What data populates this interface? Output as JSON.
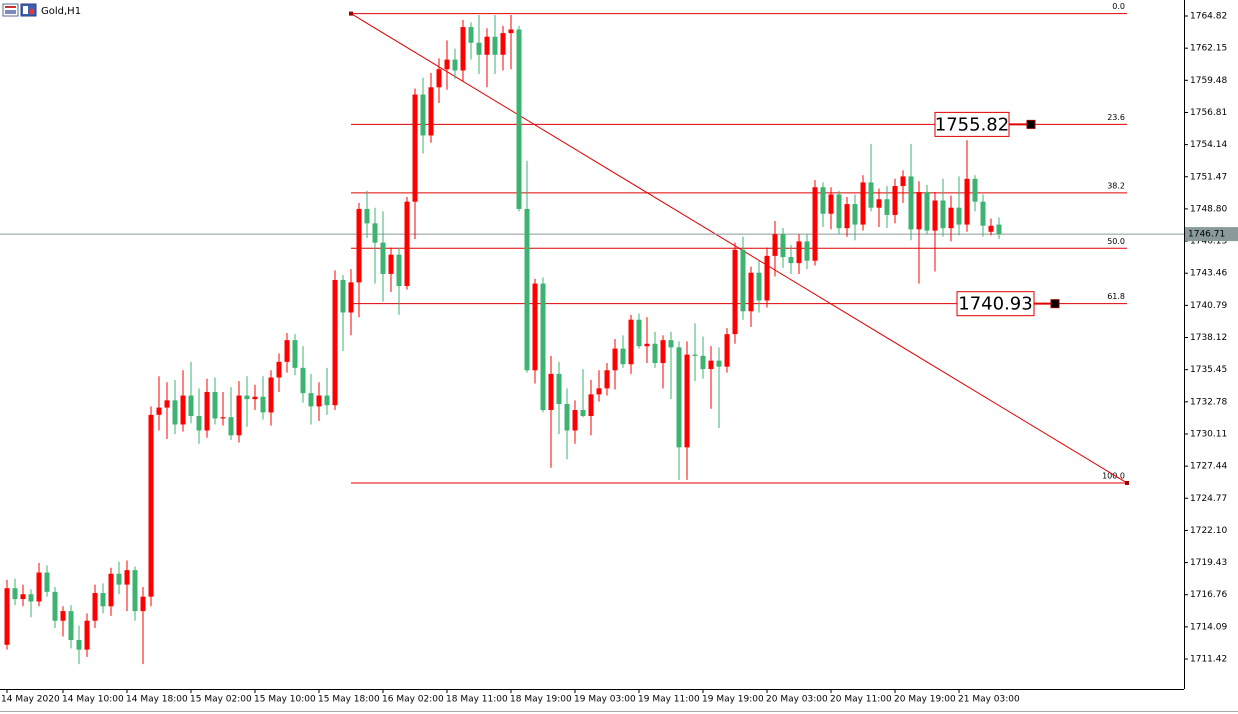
{
  "chart_data": {
    "type": "candlestick",
    "title": "Gold,H1",
    "up_color": "#ff0000",
    "down_color": "#3cb371",
    "line_color": "#e00000",
    "ylim": [
      1708.93,
      1766.15
    ],
    "yticks": [
      1764.82,
      1762.15,
      1759.48,
      1756.81,
      1754.14,
      1751.47,
      {
        "value": 1748.8,
        "label": "1748.80"
      },
      1746.13,
      1743.46,
      1740.79,
      1738.12,
      1735.45,
      1732.78,
      1730.11,
      1727.44,
      1724.77,
      {
        "value": 1722.1,
        "label": "1722.10"
      },
      1719.43,
      1716.76,
      1714.09,
      1711.42
    ],
    "current_price": 1746.71,
    "fib_high": 1765.02,
    "fib_low": 1726.04,
    "fib_levels": [
      {
        "value": 0,
        "label": "0.0"
      },
      23.6,
      38.2,
      {
        "value": 50,
        "label": "50.0"
      },
      61.8,
      {
        "value": 100,
        "label": "100.0"
      }
    ],
    "price_labels": [
      1755.82,
      1740.93
    ],
    "categories": [
      "14 May 2020",
      null,
      null,
      null,
      null,
      null,
      null,
      "14 May 10:00",
      null,
      null,
      null,
      null,
      null,
      null,
      null,
      "14 May 18:00",
      null,
      null,
      null,
      null,
      null,
      null,
      null,
      "15 May 02:00",
      null,
      null,
      null,
      null,
      null,
      null,
      null,
      "15 May 10:00",
      null,
      null,
      null,
      null,
      null,
      null,
      null,
      "15 May 18:00",
      null,
      null,
      null,
      null,
      null,
      null,
      null,
      "16 May 02:00",
      null,
      null,
      null,
      null,
      null,
      null,
      null,
      "18 May 11:00",
      null,
      null,
      null,
      null,
      null,
      null,
      null,
      "18 May 19:00",
      null,
      null,
      null,
      null,
      null,
      null,
      null,
      "19 May 03:00",
      null,
      null,
      null,
      null,
      null,
      null,
      null,
      "19 May 11:00",
      null,
      null,
      null,
      null,
      null,
      null,
      null,
      "19 May 19:00",
      null,
      null,
      null,
      null,
      null,
      null,
      null,
      "20 May 03:00",
      null,
      null,
      null,
      null,
      null,
      null,
      null,
      "20 May 11:00",
      null,
      null,
      null,
      null,
      null,
      null,
      null,
      "20 May 19:00",
      null,
      null,
      null,
      null,
      null,
      null,
      null,
      "21 May 03:00",
      null,
      null,
      null,
      null,
      null
    ],
    "ohlc": [
      [
        1712.6,
        1718.0,
        1712.2,
        1717.3
      ],
      [
        1717.3,
        1718.1,
        1715.9,
        1716.4
      ],
      [
        1716.4,
        1717.6,
        1715.8,
        1716.8
      ],
      [
        1716.8,
        1717.2,
        1714.9,
        1716.2
      ],
      [
        1716.2,
        1719.4,
        1715.8,
        1718.6
      ],
      [
        1718.6,
        1719.2,
        1716.6,
        1717.0
      ],
      [
        1717.0,
        1717.4,
        1714.0,
        1714.6
      ],
      [
        1714.6,
        1715.8,
        1713.3,
        1715.4
      ],
      [
        1715.4,
        1715.9,
        1712.3,
        1713.0
      ],
      [
        1713.0,
        1714.2,
        1711.0,
        1712.2
      ],
      [
        1712.2,
        1715.2,
        1711.6,
        1714.6
      ],
      [
        1714.6,
        1717.6,
        1714.0,
        1716.9
      ],
      [
        1716.9,
        1717.7,
        1715.2,
        1715.8
      ],
      [
        1715.8,
        1719.0,
        1715.0,
        1718.5
      ],
      [
        1718.5,
        1719.5,
        1716.8,
        1717.6
      ],
      [
        1717.6,
        1719.6,
        1715.4,
        1718.8
      ],
      [
        1718.8,
        1719.1,
        1714.6,
        1715.4
      ],
      [
        1715.4,
        1717.4,
        1711.0,
        1716.6
      ],
      [
        1716.6,
        1732.4,
        1715.8,
        1731.7
      ],
      [
        1731.7,
        1734.9,
        1730.4,
        1732.3
      ],
      [
        1732.3,
        1734.4,
        1729.7,
        1732.9
      ],
      [
        1732.9,
        1734.6,
        1730.1,
        1730.9
      ],
      [
        1730.9,
        1735.4,
        1730.3,
        1733.3
      ],
      [
        1733.3,
        1736.1,
        1731.0,
        1731.6
      ],
      [
        1731.6,
        1733.9,
        1729.3,
        1730.4
      ],
      [
        1730.4,
        1734.7,
        1729.8,
        1733.6
      ],
      [
        1733.6,
        1734.8,
        1730.9,
        1731.4
      ],
      [
        1731.4,
        1733.6,
        1730.8,
        1731.5
      ],
      [
        1731.5,
        1734.0,
        1729.6,
        1730.0
      ],
      [
        1730.0,
        1734.5,
        1729.4,
        1733.3
      ],
      [
        1733.3,
        1734.9,
        1730.7,
        1733.0
      ],
      [
        1733.0,
        1734.2,
        1732.1,
        1733.2
      ],
      [
        1733.2,
        1734.9,
        1731.3,
        1731.9
      ],
      [
        1731.9,
        1735.4,
        1730.8,
        1734.8
      ],
      [
        1734.8,
        1736.8,
        1733.6,
        1736.1
      ],
      [
        1736.1,
        1738.5,
        1735.2,
        1737.9
      ],
      [
        1737.9,
        1738.4,
        1735.0,
        1735.6
      ],
      [
        1735.6,
        1737.4,
        1732.7,
        1733.5
      ],
      [
        1733.5,
        1735.1,
        1730.9,
        1732.4
      ],
      [
        1732.4,
        1734.4,
        1731.2,
        1733.3
      ],
      [
        1733.3,
        1735.6,
        1731.7,
        1732.5
      ],
      [
        1732.5,
        1743.7,
        1732.1,
        1742.9
      ],
      [
        1742.9,
        1743.3,
        1737.0,
        1740.2
      ],
      [
        1740.2,
        1743.8,
        1738.3,
        1742.7
      ],
      [
        1742.7,
        1749.3,
        1739.8,
        1748.8
      ],
      [
        1748.8,
        1750.3,
        1746.4,
        1747.6
      ],
      [
        1747.6,
        1748.9,
        1742.6,
        1746.0
      ],
      [
        1746.0,
        1748.6,
        1741.1,
        1743.4
      ],
      [
        1743.4,
        1745.6,
        1741.9,
        1745.0
      ],
      [
        1745.0,
        1745.6,
        1740.0,
        1742.4
      ],
      [
        1742.4,
        1749.8,
        1742.1,
        1749.4
      ],
      [
        1749.4,
        1758.8,
        1746.3,
        1758.3
      ],
      [
        1758.3,
        1759.7,
        1753.4,
        1754.9
      ],
      [
        1754.9,
        1760.1,
        1754.3,
        1758.9
      ],
      [
        1758.9,
        1761.3,
        1757.6,
        1760.4
      ],
      [
        1760.4,
        1762.8,
        1758.7,
        1761.2
      ],
      [
        1761.2,
        1762.1,
        1759.6,
        1760.3
      ],
      [
        1760.3,
        1764.5,
        1759.4,
        1763.9
      ],
      [
        1763.9,
        1764.3,
        1761.2,
        1762.6
      ],
      [
        1762.6,
        1764.9,
        1760.0,
        1761.6
      ],
      [
        1761.6,
        1763.8,
        1758.9,
        1763.1
      ],
      [
        1763.1,
        1764.9,
        1760.0,
        1761.6
      ],
      [
        1761.6,
        1764.0,
        1760.3,
        1763.4
      ],
      [
        1763.4,
        1764.9,
        1760.4,
        1763.7
      ],
      [
        1763.7,
        1764.0,
        1748.6,
        1748.8
      ],
      [
        1748.8,
        1752.8,
        1735.2,
        1735.4
      ],
      [
        1735.4,
        1743.0,
        1734.3,
        1742.6
      ],
      [
        1742.6,
        1743.1,
        1731.9,
        1732.1
      ],
      [
        1732.1,
        1736.6,
        1727.3,
        1735.1
      ],
      [
        1735.1,
        1736.1,
        1730.1,
        1732.6
      ],
      [
        1732.6,
        1733.9,
        1728.0,
        1730.4
      ],
      [
        1730.4,
        1732.9,
        1729.3,
        1732.1
      ],
      [
        1732.1,
        1735.5,
        1731.5,
        1731.6
      ],
      [
        1731.6,
        1734.6,
        1730.0,
        1733.4
      ],
      [
        1733.4,
        1735.4,
        1732.8,
        1733.9
      ],
      [
        1733.9,
        1736.0,
        1733.3,
        1735.4
      ],
      [
        1735.4,
        1738.0,
        1733.8,
        1737.2
      ],
      [
        1737.2,
        1738.3,
        1735.6,
        1735.9
      ],
      [
        1735.9,
        1740.0,
        1735.1,
        1739.6
      ],
      [
        1739.6,
        1740.1,
        1737.2,
        1737.4
      ],
      [
        1737.4,
        1739.8,
        1736.0,
        1737.6
      ],
      [
        1737.6,
        1738.6,
        1735.6,
        1736.0
      ],
      [
        1736.0,
        1738.3,
        1733.9,
        1737.9
      ],
      [
        1737.9,
        1738.6,
        1733.0,
        1737.3
      ],
      [
        1737.3,
        1737.8,
        1726.3,
        1729.0
      ],
      [
        1729.0,
        1737.8,
        1726.3,
        1736.7
      ],
      [
        1736.7,
        1739.3,
        1734.5,
        1736.6
      ],
      [
        1736.6,
        1738.2,
        1734.7,
        1735.5
      ],
      [
        1735.5,
        1737.4,
        1732.2,
        1736.2
      ],
      [
        1736.2,
        1737.3,
        1730.6,
        1735.7
      ],
      [
        1735.7,
        1738.9,
        1735.2,
        1738.4
      ],
      [
        1738.4,
        1746.0,
        1737.6,
        1745.4
      ],
      [
        1745.4,
        1746.5,
        1739.6,
        1740.3
      ],
      [
        1740.3,
        1744.0,
        1739.0,
        1743.5
      ],
      [
        1743.5,
        1744.5,
        1740.2,
        1741.2
      ],
      [
        1741.2,
        1745.6,
        1740.6,
        1744.9
      ],
      [
        1744.9,
        1747.8,
        1743.2,
        1746.7
      ],
      [
        1746.7,
        1747.2,
        1743.9,
        1744.8
      ],
      [
        1744.8,
        1745.8,
        1743.4,
        1744.3
      ],
      [
        1744.3,
        1746.7,
        1743.4,
        1746.1
      ],
      [
        1746.1,
        1746.7,
        1743.8,
        1744.5
      ],
      [
        1744.5,
        1751.2,
        1744.1,
        1750.6
      ],
      [
        1750.6,
        1751.0,
        1747.3,
        1748.4
      ],
      [
        1748.4,
        1750.6,
        1747.1,
        1750.0
      ],
      [
        1750.0,
        1750.3,
        1746.7,
        1747.2
      ],
      [
        1747.2,
        1749.8,
        1746.5,
        1749.2
      ],
      [
        1749.2,
        1750.0,
        1746.2,
        1747.5
      ],
      [
        1747.5,
        1751.6,
        1747.0,
        1751.0
      ],
      [
        1751.0,
        1754.2,
        1748.6,
        1748.9
      ],
      [
        1748.9,
        1750.5,
        1747.3,
        1749.6
      ],
      [
        1749.6,
        1750.7,
        1747.2,
        1748.3
      ],
      [
        1748.3,
        1751.3,
        1747.6,
        1750.7
      ],
      [
        1750.7,
        1752.0,
        1749.3,
        1751.5
      ],
      [
        1751.5,
        1754.2,
        1746.2,
        1747.1
      ],
      [
        1747.1,
        1751.1,
        1742.6,
        1750.2
      ],
      [
        1750.2,
        1750.8,
        1746.7,
        1747.0
      ],
      [
        1747.0,
        1750.2,
        1743.6,
        1749.5
      ],
      [
        1749.5,
        1751.3,
        1746.5,
        1747.2
      ],
      [
        1747.2,
        1749.9,
        1746.1,
        1748.9
      ],
      [
        1748.9,
        1751.5,
        1746.6,
        1747.5
      ],
      [
        1747.5,
        1754.5,
        1746.9,
        1751.3
      ],
      [
        1751.3,
        1751.6,
        1748.6,
        1749.4
      ],
      [
        1749.4,
        1750.0,
        1746.5,
        1747.4
      ],
      [
        1746.9,
        1748.0,
        1746.6,
        1747.4
      ],
      [
        1747.5,
        1748.1,
        1746.3,
        1746.71
      ]
    ]
  }
}
